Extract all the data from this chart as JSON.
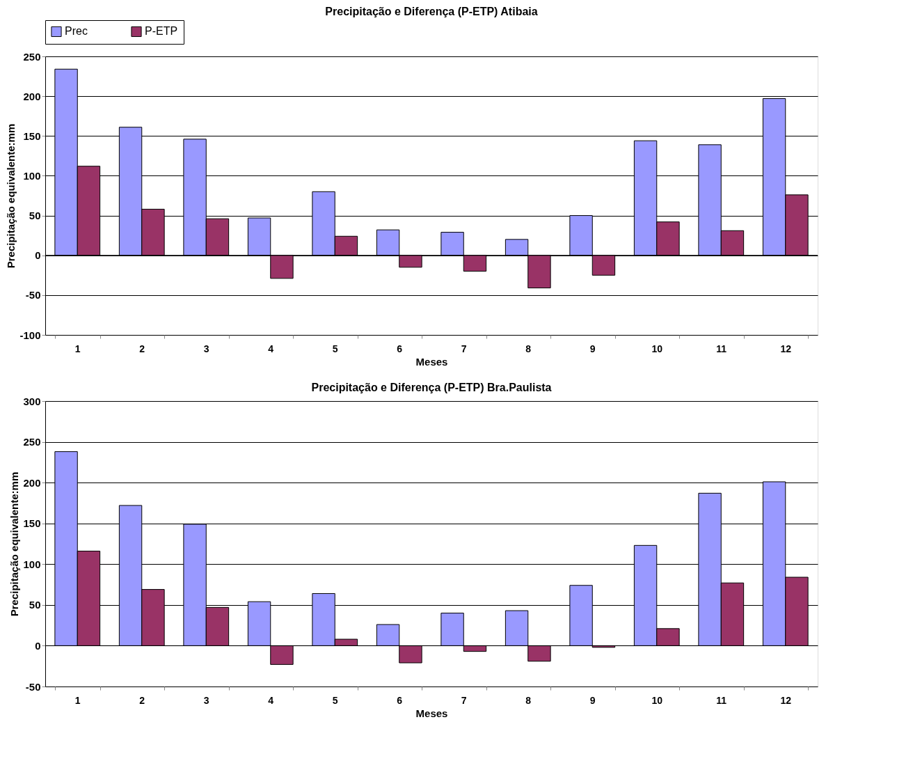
{
  "chart_data": [
    {
      "type": "bar",
      "title": "Precipitação e Diferença (P-ETP) Atibaia",
      "xlabel": "Meses",
      "ylabel": "Precipitação equivalente:mm",
      "categories": [
        "1",
        "2",
        "3",
        "4",
        "5",
        "6",
        "7",
        "8",
        "9",
        "10",
        "11",
        "12"
      ],
      "series": [
        {
          "name": "Prec",
          "color": "#9999ff",
          "values": [
            234,
            161,
            146,
            47,
            80,
            32,
            29,
            20,
            50,
            144,
            139,
            197
          ]
        },
        {
          "name": "P-ETP",
          "color": "#993366",
          "values": [
            112,
            58,
            46,
            -29,
            24,
            -15,
            -20,
            -41,
            -25,
            42,
            31,
            76
          ]
        }
      ],
      "ylim": [
        -100,
        250
      ],
      "yticks": [
        -100,
        -50,
        0,
        50,
        100,
        150,
        200,
        250
      ],
      "grid": "y",
      "legend": "top"
    },
    {
      "type": "bar",
      "title": "Precipitação e Diferença (P-ETP) Bra.Paulista",
      "xlabel": "Meses",
      "ylabel": "Precipitação equivalente:mm",
      "categories": [
        "1",
        "2",
        "3",
        "4",
        "5",
        "6",
        "7",
        "8",
        "9",
        "10",
        "11",
        "12"
      ],
      "series": [
        {
          "color": "#9999ff",
          "values": [
            238,
            172,
            149,
            54,
            64,
            26,
            40,
            43,
            74,
            123,
            187,
            201
          ]
        },
        {
          "color": "#993366",
          "values": [
            116,
            69,
            47,
            -23,
            8,
            -21,
            -7,
            -19,
            -2,
            21,
            77,
            84
          ]
        }
      ],
      "ylim": [
        -50,
        300
      ],
      "yticks": [
        -50,
        0,
        50,
        100,
        150,
        200,
        250,
        300
      ],
      "grid": "y",
      "legend": false
    }
  ]
}
